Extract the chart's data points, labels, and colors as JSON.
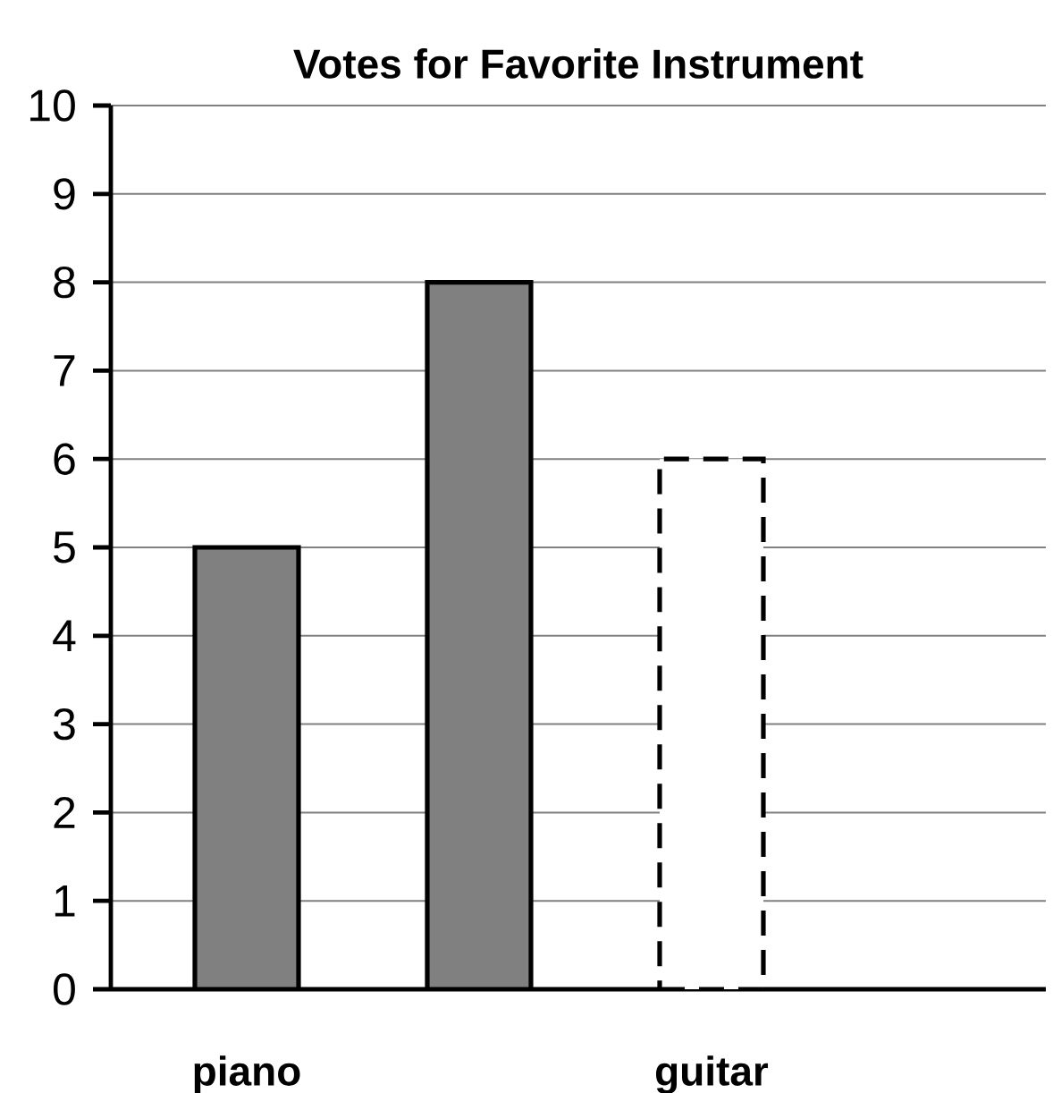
{
  "chart_data": {
    "type": "bar",
    "title": "Votes for Favorite Instrument",
    "categories": [
      "piano",
      null,
      "guitar",
      null
    ],
    "series": [
      {
        "color": "#808080",
        "values": [
          5,
          8,
          null,
          null
        ]
      },
      {
        "color": "#ffffff",
        "line_style": "dashed",
        "values": [
          null,
          null,
          6,
          null
        ]
      }
    ],
    "ylim": [
      0,
      10
    ],
    "yticks": [
      0,
      1,
      2,
      3,
      4,
      5,
      6,
      7,
      8,
      9,
      10
    ],
    "grid": "y"
  }
}
